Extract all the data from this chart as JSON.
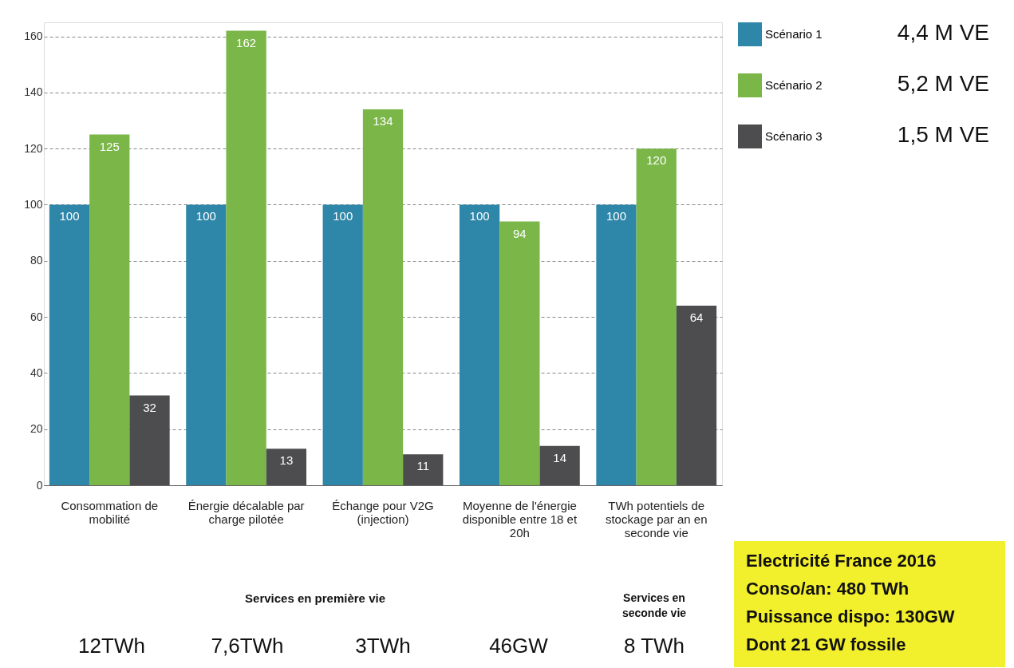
{
  "chart_data": {
    "type": "bar",
    "categories": [
      "Consommation de mobilité",
      "Énergie décalable par charge pilotée",
      "Échange pour V2G (injection)",
      "Moyenne de l'énergie disponible entre 18 et 20h",
      "TWh potentiels de stockage par an en seconde vie"
    ],
    "series": [
      {
        "name": "Scénario 1",
        "color": "#2e86a8",
        "values": [
          100,
          100,
          100,
          100,
          100
        ]
      },
      {
        "name": "Scénario 2",
        "color": "#7ab648",
        "values": [
          125,
          162,
          134,
          94,
          120
        ]
      },
      {
        "name": "Scénario 3",
        "color": "#4d4d4f",
        "values": [
          32,
          13,
          11,
          14,
          64
        ]
      }
    ],
    "ylim": [
      0,
      165
    ],
    "yticks": [
      0,
      20,
      40,
      60,
      80,
      100,
      120,
      140,
      160
    ],
    "grid": "y",
    "legend": "top right",
    "data_labels": true,
    "annotations": [
      "Services en première vie",
      "Services en seconde vie",
      "12TWh",
      "7,6TWh",
      "3TWh",
      "46GW",
      "8 TWh",
      "4,4 M VE",
      "5,2 M VE",
      "1,5 M VE",
      "Electricité France 2016",
      "Conso/an: 480 TWh",
      "Puissance dispo: 130GW",
      "Dont 21 GW fossile"
    ]
  }
}
